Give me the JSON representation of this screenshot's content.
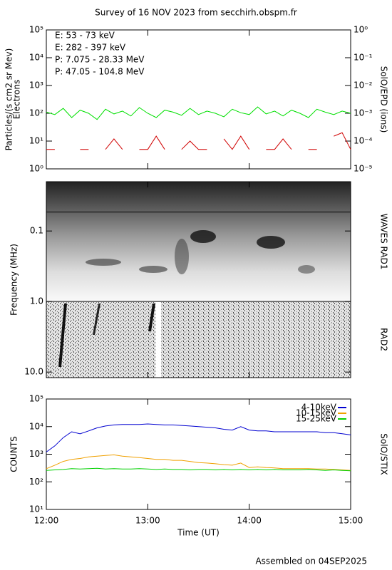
{
  "title": "Survey of 16 NOV 2023 from secchirh.obspm.fr",
  "footer": "Assembled on 04SEP2025",
  "chart_data": [
    {
      "type": "line",
      "log_y": true,
      "y_label": [
        "Particles/(s cm2 sr Mev)",
        "Electrons"
      ],
      "y2_label": "SolO/EPD (ions)",
      "x": [
        "12:00",
        "12:05",
        "12:10",
        "12:15",
        "12:20",
        "12:25",
        "12:30",
        "12:35",
        "12:40",
        "12:45",
        "12:50",
        "12:55",
        "13:00",
        "13:05",
        "13:10",
        "13:15",
        "13:20",
        "13:25",
        "13:30",
        "13:35",
        "13:40",
        "13:45",
        "13:50",
        "13:55",
        "14:00",
        "14:05",
        "14:10",
        "14:15",
        "14:20",
        "14:25",
        "14:30",
        "14:35",
        "14:40",
        "14:45",
        "14:50",
        "14:55",
        "15:00"
      ],
      "xlim": [
        "12:00",
        "15:00"
      ],
      "xticks": [
        "12:00",
        "13:00",
        "14:00",
        "15:00"
      ],
      "ylim": [
        1,
        100000
      ],
      "yticks": [
        {
          "value": 1,
          "label": "10⁰"
        },
        {
          "value": 10,
          "label": "10¹"
        },
        {
          "value": 100,
          "label": "10²"
        },
        {
          "value": 1000,
          "label": "10³"
        },
        {
          "value": 10000,
          "label": "10⁴"
        },
        {
          "value": 100000,
          "label": "10⁵"
        }
      ],
      "y2lim": [
        1e-05,
        1
      ],
      "y2ticks": [
        {
          "value": 1e-05,
          "label": "10⁻⁵"
        },
        {
          "value": 0.0001,
          "label": "10⁻⁴"
        },
        {
          "value": 0.001,
          "label": "10⁻³"
        },
        {
          "value": 0.01,
          "label": "10⁻²"
        },
        {
          "value": 0.1,
          "label": "10⁻¹"
        },
        {
          "value": 1,
          "label": "10⁰"
        }
      ],
      "series": [
        {
          "name": "E: 53 - 73 keV",
          "color": "#00e000",
          "values": [
            110,
            90,
            150,
            70,
            130,
            100,
            60,
            140,
            95,
            120,
            80,
            160,
            100,
            70,
            130,
            110,
            85,
            150,
            90,
            120,
            100,
            75,
            140,
            105,
            90,
            170,
            95,
            120,
            80,
            130,
            100,
            70,
            140,
            110,
            90,
            120,
            100
          ]
        },
        {
          "name": "E: 282 - 397 keV",
          "color": "#d00000",
          "values": [
            5,
            5,
            null,
            null,
            5,
            5,
            null,
            5,
            12,
            5,
            null,
            5,
            5,
            15,
            5,
            null,
            5,
            10,
            5,
            5,
            null,
            12,
            5,
            15,
            5,
            null,
            5,
            5,
            12,
            5,
            null,
            5,
            5,
            null,
            15,
            20,
            5
          ]
        },
        {
          "name": "P: 7.075 - 28.33 MeV",
          "color": "#000000"
        },
        {
          "name": "P: 47.05 - 104.8 MeV",
          "color": "#0000c0"
        }
      ]
    },
    {
      "type": "spectrogram",
      "log_y": true,
      "invert_y": true,
      "y_label": "Frequency (MHz)",
      "band_labels": [
        "WAVES RAD1",
        "RAD2"
      ],
      "xlim": [
        "12:00",
        "15:00"
      ],
      "xticks": [
        "12:00",
        "13:00",
        "14:00",
        "15:00"
      ],
      "ylim": [
        0.02,
        12
      ],
      "yticks": [
        0.1,
        {
          "value": 1,
          "label": "1.0"
        },
        {
          "value": 10,
          "label": "10.0"
        }
      ]
    },
    {
      "type": "line",
      "log_y": true,
      "y_label": "COUNTS",
      "y2_label": "SolO/STIX",
      "x_label": "Time (UT)",
      "x": [
        "12:00",
        "12:05",
        "12:10",
        "12:15",
        "12:20",
        "12:25",
        "12:30",
        "12:35",
        "12:40",
        "12:45",
        "12:50",
        "12:55",
        "13:00",
        "13:05",
        "13:10",
        "13:15",
        "13:20",
        "13:25",
        "13:30",
        "13:35",
        "13:40",
        "13:45",
        "13:50",
        "13:55",
        "14:00",
        "14:05",
        "14:10",
        "14:15",
        "14:20",
        "14:25",
        "14:30",
        "14:35",
        "14:40",
        "14:45",
        "14:50",
        "14:55",
        "15:00"
      ],
      "xlim": [
        "12:00",
        "15:00"
      ],
      "xticks": [
        "12:00",
        "13:00",
        "14:00",
        "15:00"
      ],
      "ylim": [
        10,
        100000
      ],
      "yticks": [
        {
          "value": 10,
          "label": "10¹"
        },
        {
          "value": 100,
          "label": "10²"
        },
        {
          "value": 1000,
          "label": "10³"
        },
        {
          "value": 10000,
          "label": "10⁴"
        },
        {
          "value": 100000,
          "label": "10⁵"
        }
      ],
      "series": [
        {
          "name": "4-10keV",
          "color": "#0000d0",
          "values": [
            1200,
            2000,
            4000,
            6500,
            5500,
            7000,
            9000,
            10500,
            11500,
            12000,
            12000,
            12000,
            12500,
            12000,
            11500,
            11500,
            11000,
            10500,
            10000,
            9500,
            9000,
            8000,
            7500,
            10000,
            7500,
            7000,
            7000,
            6500,
            6500,
            6500,
            6500,
            6500,
            6500,
            6000,
            6000,
            5500,
            5000
          ]
        },
        {
          "name": "10-15keV",
          "color": "#f0a000",
          "values": [
            300,
            400,
            550,
            650,
            700,
            800,
            850,
            900,
            950,
            850,
            800,
            750,
            700,
            650,
            650,
            600,
            600,
            550,
            500,
            480,
            450,
            420,
            400,
            480,
            330,
            350,
            330,
            320,
            300,
            300,
            300,
            300,
            290,
            290,
            280,
            270,
            260
          ]
        },
        {
          "name": "15-25keV",
          "color": "#00d000",
          "values": [
            260,
            270,
            280,
            300,
            290,
            300,
            310,
            290,
            300,
            290,
            290,
            300,
            290,
            280,
            290,
            280,
            280,
            270,
            280,
            280,
            270,
            280,
            270,
            280,
            270,
            280,
            270,
            280,
            270,
            270,
            270,
            280,
            270,
            260,
            270,
            260,
            250
          ]
        }
      ]
    }
  ]
}
